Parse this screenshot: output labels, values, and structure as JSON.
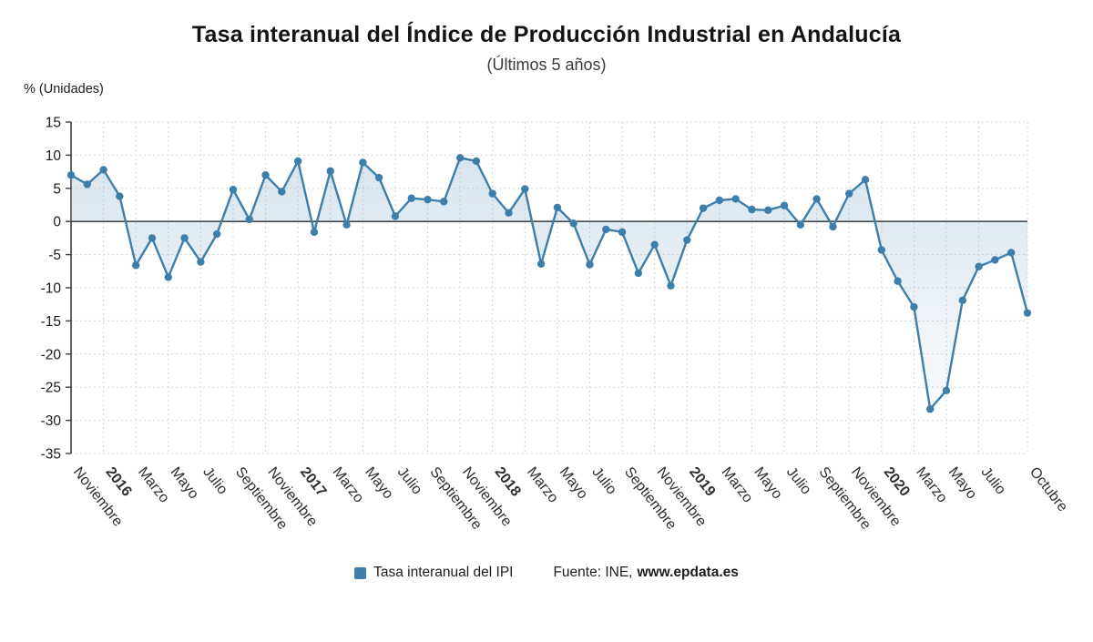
{
  "chart_data": {
    "type": "line",
    "title": "Tasa interanual del Índice de Producción Industrial en Andalucía",
    "subtitle": "(Últimos 5 años)",
    "ylabel": "% (Unidades)",
    "ylim": [
      -35,
      15
    ],
    "ytick_step": 5,
    "grid": true,
    "legend_position": "bottom",
    "line_color": "#3d7eab",
    "area_color": "#7fa8c9",
    "months": [
      "Noviembre 2015",
      "Diciembre 2015",
      "Enero 2016",
      "Febrero 2016",
      "Marzo 2016",
      "Abril 2016",
      "Mayo 2016",
      "Junio 2016",
      "Julio 2016",
      "Agosto 2016",
      "Septiembre 2016",
      "Octubre 2016",
      "Noviembre 2016",
      "Diciembre 2016",
      "Enero 2017",
      "Febrero 2017",
      "Marzo 2017",
      "Abril 2017",
      "Mayo 2017",
      "Junio 2017",
      "Julio 2017",
      "Agosto 2017",
      "Septiembre 2017",
      "Octubre 2017",
      "Noviembre 2017",
      "Diciembre 2017",
      "Enero 2018",
      "Febrero 2018",
      "Marzo 2018",
      "Abril 2018",
      "Mayo 2018",
      "Junio 2018",
      "Julio 2018",
      "Agosto 2018",
      "Septiembre 2018",
      "Octubre 2018",
      "Noviembre 2018",
      "Diciembre 2018",
      "Enero 2019",
      "Febrero 2019",
      "Marzo 2019",
      "Abril 2019",
      "Mayo 2019",
      "Junio 2019",
      "Julio 2019",
      "Agosto 2019",
      "Septiembre 2019",
      "Octubre 2019",
      "Noviembre 2019",
      "Diciembre 2019",
      "Enero 2020",
      "Febrero 2020",
      "Marzo 2020",
      "Abril 2020",
      "Mayo 2020",
      "Junio 2020",
      "Julio 2020",
      "Agosto 2020",
      "Septiembre 2020",
      "Octubre 2020"
    ],
    "series": [
      {
        "name": "Tasa interanual del IPI",
        "color": "#3d7eab",
        "values": [
          7.0,
          5.6,
          7.8,
          3.8,
          -6.6,
          -2.5,
          -8.4,
          -2.5,
          -6.1,
          -1.9,
          4.8,
          0.3,
          7.0,
          4.5,
          9.1,
          -1.6,
          7.6,
          -0.5,
          8.9,
          6.6,
          0.8,
          3.5,
          3.3,
          3.0,
          9.6,
          9.1,
          4.2,
          1.3,
          4.9,
          -6.4,
          2.1,
          -0.3,
          -6.5,
          -1.2,
          -1.6,
          -7.8,
          -3.5,
          -9.7,
          -2.8,
          2.0,
          3.2,
          3.4,
          1.8,
          1.7,
          2.4,
          -0.5,
          3.4,
          -0.8,
          4.2,
          6.3,
          -4.3,
          -9.0,
          -12.9,
          -28.3,
          -25.5,
          -11.9,
          -6.8,
          -5.8,
          -4.7,
          -13.8
        ]
      }
    ],
    "x_tick_labels": [
      {
        "text": "Noviembre",
        "index": 0,
        "bold": false
      },
      {
        "text": "2016",
        "index": 2,
        "bold": true
      },
      {
        "text": "Marzo",
        "index": 4,
        "bold": false
      },
      {
        "text": "Mayo",
        "index": 6,
        "bold": false
      },
      {
        "text": "Julio",
        "index": 8,
        "bold": false
      },
      {
        "text": "Septiembre",
        "index": 10,
        "bold": false
      },
      {
        "text": "Noviembre",
        "index": 12,
        "bold": false
      },
      {
        "text": "2017",
        "index": 14,
        "bold": true
      },
      {
        "text": "Marzo",
        "index": 16,
        "bold": false
      },
      {
        "text": "Mayo",
        "index": 18,
        "bold": false
      },
      {
        "text": "Julio",
        "index": 20,
        "bold": false
      },
      {
        "text": "Septiembre",
        "index": 22,
        "bold": false
      },
      {
        "text": "Noviembre",
        "index": 24,
        "bold": false
      },
      {
        "text": "2018",
        "index": 26,
        "bold": true
      },
      {
        "text": "Marzo",
        "index": 28,
        "bold": false
      },
      {
        "text": "Mayo",
        "index": 30,
        "bold": false
      },
      {
        "text": "Julio",
        "index": 32,
        "bold": false
      },
      {
        "text": "Septiembre",
        "index": 34,
        "bold": false
      },
      {
        "text": "Noviembre",
        "index": 36,
        "bold": false
      },
      {
        "text": "2019",
        "index": 38,
        "bold": true
      },
      {
        "text": "Marzo",
        "index": 40,
        "bold": false
      },
      {
        "text": "Mayo",
        "index": 42,
        "bold": false
      },
      {
        "text": "Julio",
        "index": 44,
        "bold": false
      },
      {
        "text": "Septiembre",
        "index": 46,
        "bold": false
      },
      {
        "text": "Noviembre",
        "index": 48,
        "bold": false
      },
      {
        "text": "2020",
        "index": 50,
        "bold": true
      },
      {
        "text": "Marzo",
        "index": 52,
        "bold": false
      },
      {
        "text": "Mayo",
        "index": 54,
        "bold": false
      },
      {
        "text": "Julio",
        "index": 56,
        "bold": false
      },
      {
        "text": "Octubre",
        "index": 59,
        "bold": false
      }
    ]
  },
  "legend": {
    "label": "Tasa interanual del IPI",
    "swatch_color": "#3d7eab"
  },
  "source": {
    "prefix": "Fuente: INE,",
    "site": "www.epdata.es"
  }
}
